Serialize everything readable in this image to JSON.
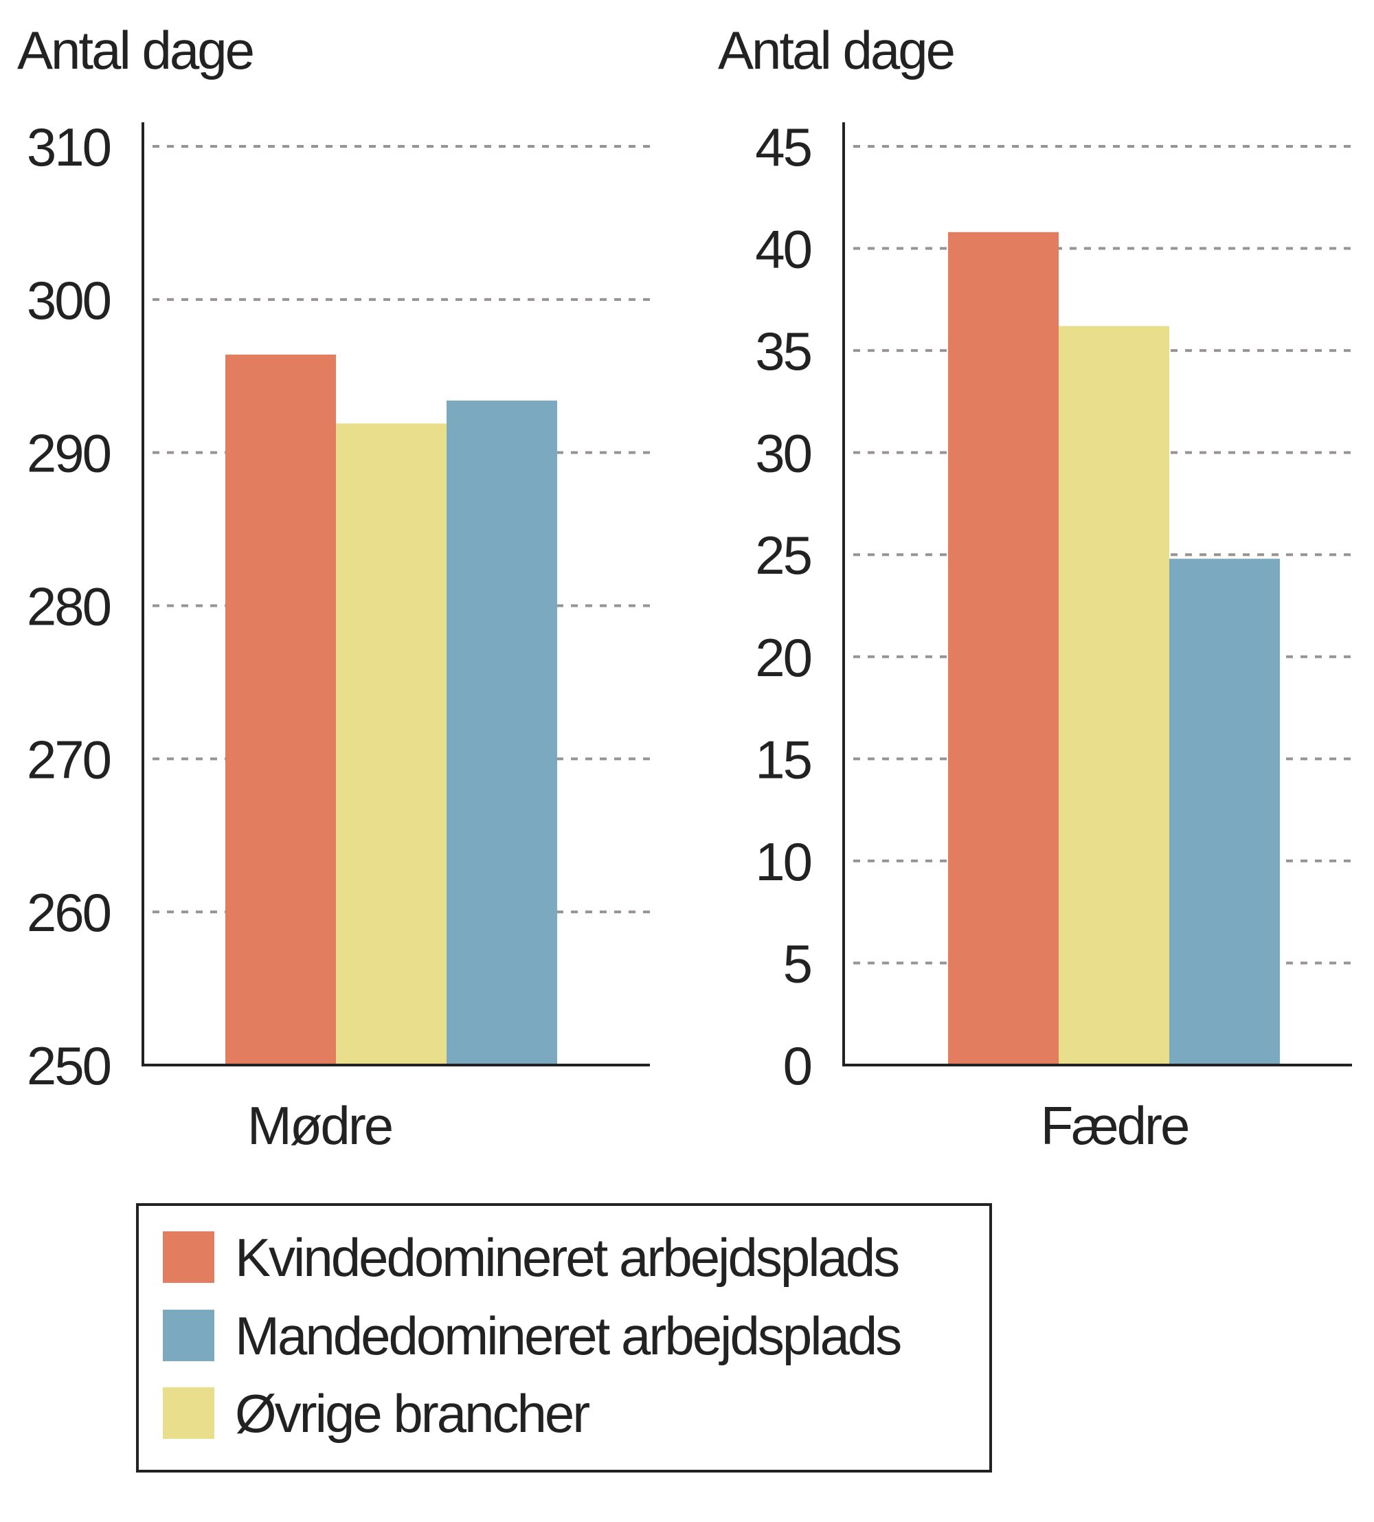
{
  "chart_data": [
    {
      "type": "bar",
      "ylabel": "Antal dage",
      "categories": [
        "Mødre"
      ],
      "ylim": [
        250,
        310
      ],
      "yticks": [
        250,
        260,
        270,
        280,
        290,
        300,
        310
      ],
      "grid": true,
      "series": [
        {
          "name": "Kvindedomineret arbejdsplads",
          "values": [
            296.4
          ],
          "color": "#e37d5f"
        },
        {
          "name": "Øvrige brancher",
          "values": [
            291.9
          ],
          "color": "#e8de8c"
        },
        {
          "name": "Mandedomineret arbejdsplads",
          "values": [
            293.4
          ],
          "color": "#7ba9bf"
        }
      ]
    },
    {
      "type": "bar",
      "ylabel": "Antal dage",
      "categories": [
        "Fædre"
      ],
      "ylim": [
        0,
        45
      ],
      "yticks": [
        0,
        5,
        10,
        15,
        20,
        25,
        30,
        35,
        40,
        45
      ],
      "grid": true,
      "series": [
        {
          "name": "Kvindedomineret arbejdsplads",
          "values": [
            40.8
          ],
          "color": "#e37d5f"
        },
        {
          "name": "Øvrige brancher",
          "values": [
            36.2
          ],
          "color": "#e8de8c"
        },
        {
          "name": "Mandedomineret arbejdsplads",
          "values": [
            24.8
          ],
          "color": "#7ba9bf"
        }
      ]
    }
  ],
  "legend": {
    "placement": "bottom-left",
    "items": [
      {
        "label": "Kvindedomineret arbejdsplads",
        "color": "#e37d5f"
      },
      {
        "label": "Mandedomineret arbejdsplads",
        "color": "#7ba9bf"
      },
      {
        "label": "Øvrige brancher",
        "color": "#e8de8c"
      }
    ]
  }
}
